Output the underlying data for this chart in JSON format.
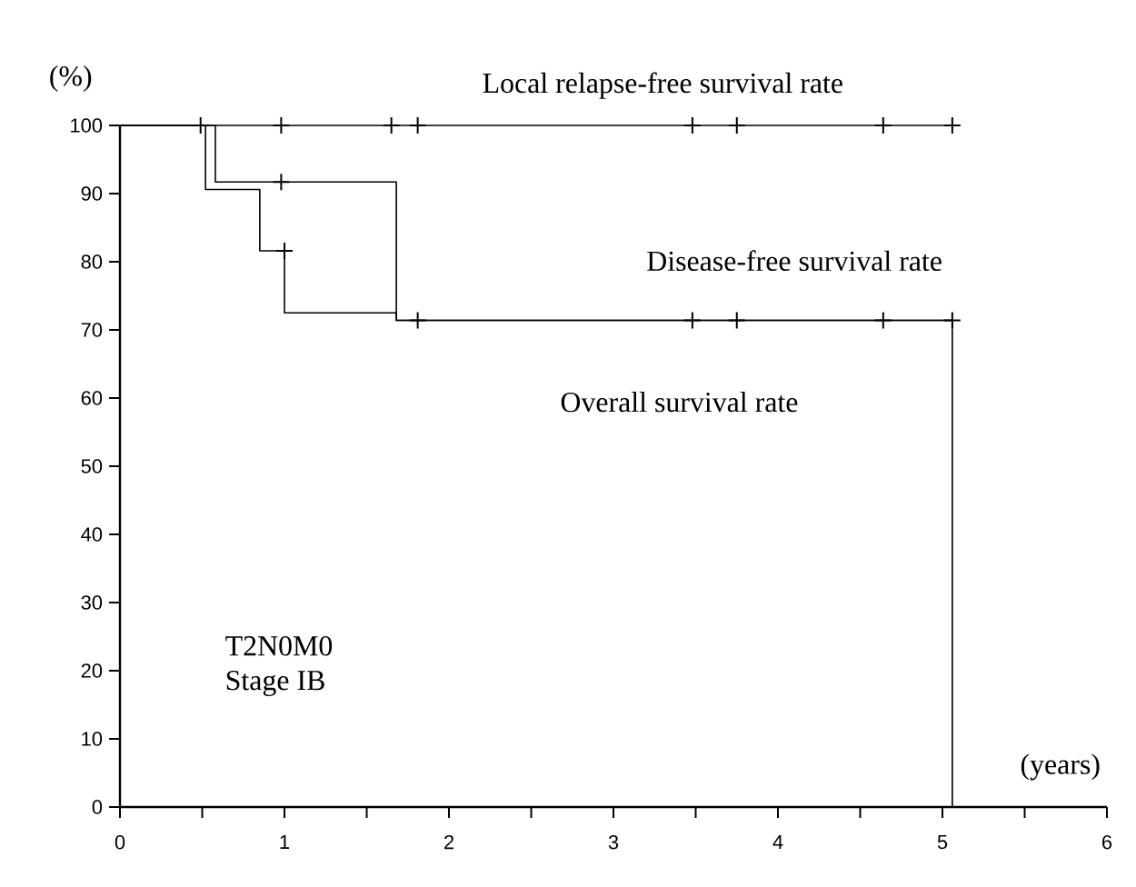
{
  "chart_data": {
    "type": "step",
    "ylabel": "(%)",
    "xlabel": "(years)",
    "xlim": [
      0,
      6
    ],
    "ylim": [
      0,
      100
    ],
    "xticks": [
      0,
      {
        "value": 0.5,
        "label": null
      },
      1,
      {
        "value": 1.5,
        "label": null
      },
      2,
      {
        "value": 2.5,
        "label": null
      },
      3,
      {
        "value": 3.5,
        "label": null
      },
      4,
      {
        "value": 4.5,
        "label": null
      },
      5,
      {
        "value": 5.5,
        "label": null
      },
      6
    ],
    "yticks": [
      0,
      10,
      20,
      30,
      40,
      50,
      60,
      70,
      80,
      90,
      100
    ],
    "grid": false,
    "marker": "none",
    "line_style": "solid",
    "series": [
      {
        "name": "Local relapse-free survival rate",
        "color": "#000000",
        "x": [
          0,
          5.06
        ],
        "values": [
          100,
          100
        ]
      },
      {
        "name": "Disease-free survival rate",
        "color": "#000000",
        "x": [
          0,
          0.58,
          0.58,
          1.68,
          1.68,
          5.06,
          5.06
        ],
        "values": [
          100,
          100,
          91.7,
          91.7,
          71.4,
          71.4,
          0
        ]
      },
      {
        "name": "Overall survival rate",
        "color": "#000000",
        "x": [
          0,
          0.52,
          0.52,
          0.85,
          0.85,
          1.0,
          1.0,
          1.68,
          1.68,
          5.06
        ],
        "values": [
          100,
          100,
          90.6,
          90.6,
          81.6,
          81.6,
          72.5,
          72.5,
          71.4,
          71.4
        ]
      },
      {
        "type": "scatter",
        "marker": "cross",
        "color": "#000000",
        "x": [
          0.49,
          0.98,
          1.65,
          1.81,
          3.48,
          3.75,
          4.64,
          5.06
        ],
        "values": [
          100,
          100,
          100,
          100,
          100,
          100,
          100,
          100
        ]
      },
      {
        "type": "scatter",
        "marker": "cross",
        "color": "#000000",
        "x": [
          0.98,
          1.81,
          3.48,
          3.75,
          4.64,
          5.06
        ],
        "values": [
          91.7,
          71.4,
          71.4,
          71.4,
          71.4,
          71.4
        ]
      },
      {
        "type": "scatter",
        "marker": "cross",
        "color": "#000000",
        "x": [
          1.0
        ],
        "values": [
          81.6
        ]
      }
    ],
    "annotations": [
      "T2N0M0",
      "Stage IB"
    ]
  }
}
